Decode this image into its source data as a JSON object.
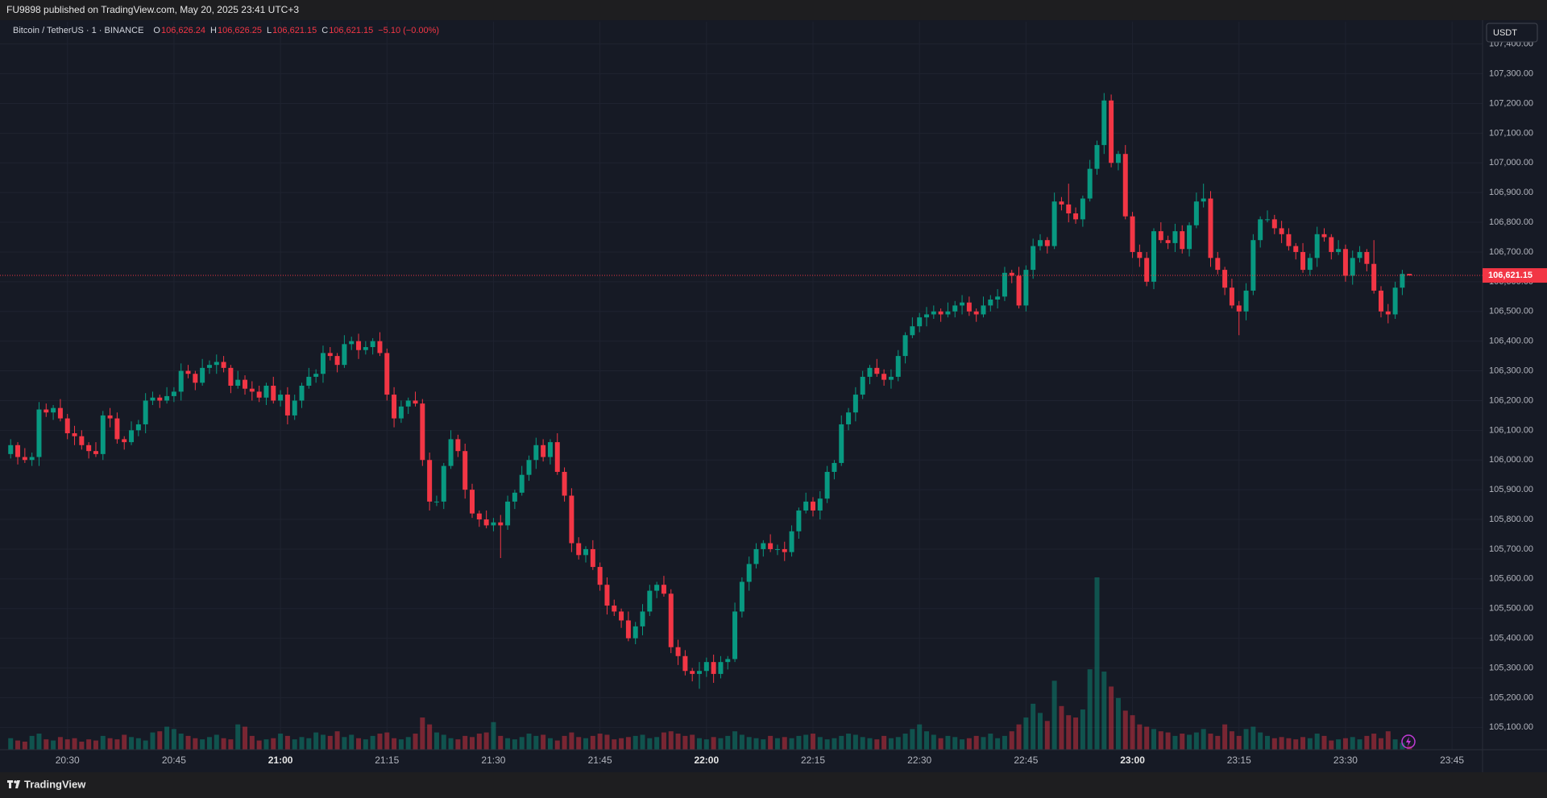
{
  "top_bar": {
    "text": "FU9898 published on TradingView.com, May 20, 2025 23:41 UTC+3"
  },
  "footer": {
    "brand": "TradingView"
  },
  "chart_data": {
    "type": "candlestick",
    "header": {
      "symbol": "Bitcoin / TetherUS · 1 · BINANCE",
      "ohlc": [
        {
          "label": "O",
          "value": "106,626.24"
        },
        {
          "label": "H",
          "value": "106,626.25"
        },
        {
          "label": "L",
          "value": "106,621.15"
        },
        {
          "label": "C",
          "value": "106,621.15"
        }
      ],
      "change": "−5.10 (−0.00%)"
    },
    "currency": "USDT",
    "last_price_label": "106,621.15",
    "up_color": "#089981",
    "down_color": "#f23645",
    "grid": true,
    "xlim": [
      1220.5,
      1429.3
    ],
    "xticks": [
      {
        "value": 1230,
        "label": "20:30"
      },
      {
        "value": 1245,
        "label": "20:45"
      },
      {
        "value": 1260,
        "label": "21:00"
      },
      {
        "value": 1275,
        "label": "21:15"
      },
      {
        "value": 1290,
        "label": "21:30"
      },
      {
        "value": 1305,
        "label": "21:45"
      },
      {
        "value": 1320,
        "label": "22:00"
      },
      {
        "value": 1335,
        "label": "22:15"
      },
      {
        "value": 1350,
        "label": "22:30"
      },
      {
        "value": 1365,
        "label": "22:45"
      },
      {
        "value": 1380,
        "label": "23:00"
      },
      {
        "value": 1395,
        "label": "23:15"
      },
      {
        "value": 1410,
        "label": "23:30"
      },
      {
        "value": 1425,
        "label": "23:45"
      }
    ],
    "ylim": [
      105025,
      107475
    ],
    "yticks": [
      {
        "value": 105100,
        "label": "105,100.00"
      },
      {
        "value": 105200,
        "label": "105,200.00"
      },
      {
        "value": 105300,
        "label": "105,300.00"
      },
      {
        "value": 105400,
        "label": "105,400.00"
      },
      {
        "value": 105500,
        "label": "105,500.00"
      },
      {
        "value": 105600,
        "label": "105,600.00"
      },
      {
        "value": 105700,
        "label": "105,700.00"
      },
      {
        "value": 105800,
        "label": "105,800.00"
      },
      {
        "value": 105900,
        "label": "105,900.00"
      },
      {
        "value": 106000,
        "label": "106,000.00"
      },
      {
        "value": 106100,
        "label": "106,100.00"
      },
      {
        "value": 106200,
        "label": "106,200.00"
      },
      {
        "value": 106300,
        "label": "106,300.00"
      },
      {
        "value": 106400,
        "label": "106,400.00"
      },
      {
        "value": 106500,
        "label": "106,500.00"
      },
      {
        "value": 106600,
        "label": "106,600.00"
      },
      {
        "value": 106700,
        "label": "106,700.00"
      },
      {
        "value": 106800,
        "label": "106,800.00"
      },
      {
        "value": 106900,
        "label": "106,900.00"
      },
      {
        "value": 107000,
        "label": "107,000.00"
      },
      {
        "value": 107100,
        "label": "107,100.00"
      },
      {
        "value": 107200,
        "label": "107,200.00"
      },
      {
        "value": 107300,
        "label": "107,300.00"
      },
      {
        "value": 107400,
        "label": "107,400.00"
      }
    ],
    "x": [
      1222,
      1223,
      1224,
      1225,
      1226,
      1227,
      1228,
      1229,
      1230,
      1231,
      1232,
      1233,
      1234,
      1235,
      1236,
      1237,
      1238,
      1239,
      1240,
      1241,
      1242,
      1243,
      1244,
      1245,
      1246,
      1247,
      1248,
      1249,
      1250,
      1251,
      1252,
      1253,
      1254,
      1255,
      1256,
      1257,
      1258,
      1259,
      1260,
      1261,
      1262,
      1263,
      1264,
      1265,
      1266,
      1267,
      1268,
      1269,
      1270,
      1271,
      1272,
      1273,
      1274,
      1275,
      1276,
      1277,
      1278,
      1279,
      1280,
      1281,
      1282,
      1283,
      1284,
      1285,
      1286,
      1287,
      1288,
      1289,
      1290,
      1291,
      1292,
      1293,
      1294,
      1295,
      1296,
      1297,
      1298,
      1299,
      1300,
      1301,
      1302,
      1303,
      1304,
      1305,
      1306,
      1307,
      1308,
      1309,
      1310,
      1311,
      1312,
      1313,
      1314,
      1315,
      1316,
      1317,
      1318,
      1319,
      1320,
      1321,
      1322,
      1323,
      1324,
      1325,
      1326,
      1327,
      1328,
      1329,
      1330,
      1331,
      1332,
      1333,
      1334,
      1335,
      1336,
      1337,
      1338,
      1339,
      1340,
      1341,
      1342,
      1343,
      1344,
      1345,
      1346,
      1347,
      1348,
      1349,
      1350,
      1351,
      1352,
      1353,
      1354,
      1355,
      1356,
      1357,
      1358,
      1359,
      1360,
      1361,
      1362,
      1363,
      1364,
      1365,
      1366,
      1367,
      1368,
      1369,
      1370,
      1371,
      1372,
      1373,
      1374,
      1375,
      1376,
      1377,
      1378,
      1379,
      1380,
      1381,
      1382,
      1383,
      1384,
      1385,
      1386,
      1387,
      1388,
      1389,
      1390,
      1391,
      1392,
      1393,
      1394,
      1395,
      1396,
      1397,
      1398,
      1399,
      1400,
      1401,
      1402,
      1403,
      1404,
      1405,
      1406,
      1407,
      1408,
      1409,
      1410,
      1411,
      1412,
      1413,
      1414,
      1415,
      1416,
      1417,
      1418,
      1419
    ],
    "open": [
      106020,
      106050,
      106010,
      106000,
      106010,
      106170,
      106160,
      106175,
      106140,
      106090,
      106080,
      106050,
      106030,
      106020,
      106150,
      106140,
      106070,
      106060,
      106100,
      106120,
      106200,
      106210,
      106200,
      106215,
      106230,
      106300,
      106290,
      106260,
      106310,
      106320,
      106330,
      106310,
      106250,
      106270,
      106240,
      106230,
      106210,
      106250,
      106200,
      106220,
      106150,
      106200,
      106250,
      106280,
      106290,
      106360,
      106350,
      106320,
      106390,
      106400,
      106370,
      106380,
      106400,
      106360,
      106220,
      106140,
      106180,
      106200,
      106190,
      106000,
      105860,
      105860,
      105980,
      106070,
      106030,
      105900,
      105820,
      105800,
      105780,
      105790,
      105780,
      105860,
      105890,
      105950,
      106000,
      106050,
      106010,
      106060,
      105960,
      105880,
      105720,
      105680,
      105700,
      105640,
      105580,
      105510,
      105490,
      105460,
      105400,
      105440,
      105490,
      105560,
      105580,
      105550,
      105370,
      105340,
      105290,
      105280,
      105290,
      105320,
      105280,
      105320,
      105330,
      105490,
      105590,
      105650,
      105700,
      105720,
      105700,
      105700,
      105690,
      105760,
      105830,
      105860,
      105830,
      105870,
      105960,
      105990,
      106120,
      106160,
      106220,
      106280,
      106310,
      106290,
      106270,
      106280,
      106350,
      106420,
      106450,
      106480,
      106490,
      106500,
      106490,
      106500,
      106520,
      106530,
      106500,
      106490,
      106520,
      106540,
      106550,
      106630,
      106620,
      106520,
      106640,
      106720,
      106740,
      106720,
      106870,
      106860,
      106830,
      106810,
      106880,
      106980,
      107060,
      107210,
      107000,
      107030,
      106820,
      106700,
      106680,
      106600,
      106770,
      106740,
      106730,
      106770,
      106710,
      106790,
      106870,
      106880,
      106680,
      106640,
      106580,
      106520,
      106500,
      106570,
      106740,
      106810,
      106810,
      106780,
      106760,
      106720,
      106700,
      106640,
      106680,
      106760,
      106750,
      106700,
      106710,
      106620,
      106680,
      106700,
      106660,
      106570,
      106500,
      106490,
      106580,
      106626.24
    ],
    "high": [
      106070,
      106060,
      106040,
      106025,
      106195,
      106190,
      106185,
      106205,
      106155,
      106115,
      106100,
      106060,
      106060,
      106165,
      106175,
      106160,
      106080,
      106130,
      106135,
      106225,
      106230,
      106220,
      106245,
      106245,
      106325,
      106320,
      106300,
      106340,
      106335,
      106355,
      106350,
      106320,
      106300,
      106285,
      106265,
      106250,
      106260,
      106280,
      106235,
      106245,
      106220,
      106260,
      106310,
      106305,
      106385,
      106380,
      106360,
      106420,
      106415,
      106425,
      106400,
      106410,
      106430,
      106375,
      106245,
      106200,
      106210,
      106230,
      106205,
      106025,
      105880,
      105990,
      106100,
      106085,
      106055,
      105920,
      105830,
      105830,
      105805,
      105815,
      105880,
      105900,
      105980,
      106015,
      106075,
      106070,
      106070,
      106090,
      105975,
      105905,
      105740,
      105710,
      105730,
      105655,
      105605,
      105530,
      105500,
      105490,
      105455,
      105515,
      105580,
      105590,
      105610,
      105565,
      105395,
      105360,
      105300,
      105320,
      105335,
      105345,
      105340,
      105340,
      105520,
      105605,
      105675,
      105720,
      105730,
      105750,
      105715,
      105725,
      105780,
      105840,
      105890,
      105875,
      105895,
      105980,
      106000,
      106150,
      106175,
      106245,
      106300,
      106320,
      106340,
      106305,
      106305,
      106370,
      106430,
      106480,
      106495,
      106515,
      106520,
      106510,
      106530,
      106535,
      106555,
      106550,
      106510,
      106550,
      106555,
      106575,
      106650,
      106640,
      106650,
      106655,
      106745,
      106760,
      106750,
      106900,
      106885,
      106930,
      106850,
      106890,
      107010,
      107075,
      107235,
      107230,
      107040,
      107060,
      106835,
      106725,
      106700,
      106780,
      106800,
      106755,
      106795,
      106790,
      106800,
      106900,
      106930,
      106905,
      106700,
      106650,
      106610,
      106535,
      106595,
      106760,
      106820,
      106840,
      106825,
      106805,
      106780,
      106730,
      106730,
      106695,
      106785,
      106780,
      106760,
      106740,
      106725,
      106705,
      106720,
      106710,
      106740,
      106585,
      106525,
      106600,
      106640,
      106626.25
    ],
    "low": [
      106005,
      105985,
      105990,
      105980,
      105980,
      106145,
      106135,
      106130,
      106070,
      106050,
      106035,
      106005,
      106010,
      106000,
      106110,
      106055,
      106035,
      106050,
      106080,
      106090,
      106185,
      106175,
      106190,
      106195,
      106200,
      106275,
      106235,
      106250,
      106290,
      106290,
      106295,
      106225,
      106240,
      106220,
      106200,
      106195,
      106185,
      106190,
      106180,
      106120,
      106135,
      106175,
      106240,
      106260,
      106260,
      106335,
      106295,
      106310,
      106370,
      106340,
      106355,
      106355,
      106350,
      106200,
      106110,
      106125,
      106155,
      106180,
      105980,
      105830,
      105845,
      105835,
      105970,
      106010,
      105870,
      105805,
      105775,
      105770,
      105760,
      105670,
      105765,
      105835,
      105880,
      105930,
      105970,
      105995,
      105985,
      105950,
      105860,
      105690,
      105665,
      105655,
      105630,
      105560,
      105480,
      105475,
      105435,
      105390,
      105380,
      105410,
      105475,
      105535,
      105540,
      105350,
      105310,
      105275,
      105255,
      105230,
      105270,
      105250,
      105265,
      105295,
      105320,
      105470,
      105560,
      105635,
      105675,
      105690,
      105680,
      105660,
      105675,
      105735,
      105820,
      105810,
      105800,
      105855,
      105935,
      105980,
      106100,
      106130,
      106205,
      106255,
      106280,
      106250,
      106240,
      106265,
      106325,
      106410,
      106430,
      106450,
      106475,
      106465,
      106480,
      106480,
      106490,
      106485,
      106465,
      106480,
      106500,
      106510,
      106535,
      106595,
      106510,
      106500,
      106610,
      106705,
      106695,
      106710,
      106840,
      106800,
      106795,
      106785,
      106870,
      106960,
      107030,
      106985,
      106975,
      106810,
      106680,
      106650,
      106585,
      106575,
      106730,
      106710,
      106700,
      106695,
      106685,
      106780,
      106850,
      106650,
      106625,
      106555,
      106510,
      106420,
      106470,
      106555,
      106715,
      106800,
      106760,
      106730,
      106705,
      106675,
      106630,
      106620,
      106650,
      106735,
      106675,
      106690,
      106600,
      106590,
      106665,
      106635,
      106560,
      106480,
      106460,
      106475,
      106555,
      106621.15
    ],
    "close": [
      106050,
      106010,
      106000,
      106010,
      106170,
      106160,
      106175,
      106140,
      106090,
      106080,
      106050,
      106030,
      106020,
      106150,
      106140,
      106070,
      106060,
      106100,
      106120,
      106200,
      106210,
      106200,
      106215,
      106230,
      106300,
      106290,
      106260,
      106310,
      106320,
      106330,
      106310,
      106250,
      106270,
      106240,
      106230,
      106210,
      106250,
      106200,
      106220,
      106150,
      106200,
      106250,
      106280,
      106290,
      106360,
      106350,
      106320,
      106390,
      106400,
      106370,
      106380,
      106400,
      106360,
      106220,
      106140,
      106180,
      106200,
      106190,
      106000,
      105860,
      105860,
      105980,
      106070,
      106030,
      105900,
      105820,
      105800,
      105780,
      105790,
      105780,
      105860,
      105890,
      105950,
      106000,
      106050,
      106010,
      106060,
      105960,
      105880,
      105720,
      105680,
      105700,
      105640,
      105580,
      105510,
      105490,
      105460,
      105400,
      105440,
      105490,
      105560,
      105580,
      105550,
      105370,
      105340,
      105290,
      105280,
      105290,
      105320,
      105280,
      105320,
      105330,
      105490,
      105590,
      105650,
      105700,
      105720,
      105700,
      105700,
      105690,
      105760,
      105830,
      105860,
      105830,
      105870,
      105960,
      105990,
      106120,
      106160,
      106220,
      106280,
      106310,
      106290,
      106270,
      106280,
      106350,
      106420,
      106450,
      106480,
      106490,
      106500,
      106490,
      106500,
      106520,
      106530,
      106500,
      106490,
      106520,
      106540,
      106550,
      106630,
      106620,
      106520,
      106640,
      106720,
      106740,
      106720,
      106870,
      106860,
      106830,
      106810,
      106880,
      106980,
      107060,
      107210,
      107000,
      107030,
      106820,
      106700,
      106680,
      106600,
      106770,
      106740,
      106730,
      106770,
      106710,
      106790,
      106870,
      106880,
      106680,
      106640,
      106580,
      106520,
      106500,
      106570,
      106740,
      106810,
      106810,
      106780,
      106760,
      106720,
      106700,
      106640,
      106680,
      106760,
      106750,
      106700,
      106710,
      106620,
      106680,
      106700,
      106660,
      106570,
      106500,
      106490,
      106580,
      106626.24,
      106621.15
    ],
    "volume": [
      10,
      8,
      7,
      12,
      14,
      9,
      8,
      11,
      9,
      10,
      7,
      9,
      8,
      12,
      10,
      9,
      13,
      11,
      10,
      8,
      15,
      16,
      20,
      18,
      14,
      12,
      10,
      9,
      11,
      13,
      10,
      9,
      22,
      20,
      12,
      8,
      9,
      10,
      14,
      12,
      9,
      11,
      10,
      15,
      13,
      12,
      16,
      11,
      13,
      10,
      9,
      12,
      14,
      15,
      10,
      9,
      11,
      14,
      28,
      22,
      15,
      13,
      10,
      9,
      12,
      11,
      14,
      15,
      24,
      12,
      10,
      9,
      11,
      14,
      12,
      13,
      10,
      8,
      12,
      15,
      11,
      10,
      12,
      14,
      13,
      9,
      10,
      11,
      12,
      13,
      10,
      11,
      15,
      16,
      14,
      12,
      13,
      10,
      9,
      11,
      10,
      12,
      16,
      13,
      11,
      10,
      9,
      12,
      10,
      11,
      10,
      12,
      13,
      14,
      11,
      9,
      10,
      12,
      14,
      13,
      11,
      10,
      9,
      12,
      10,
      11,
      14,
      18,
      22,
      16,
      13,
      10,
      12,
      11,
      9,
      10,
      12,
      11,
      14,
      10,
      12,
      16,
      22,
      28,
      40,
      32,
      25,
      60,
      38,
      30,
      28,
      35,
      70,
      150,
      68,
      55,
      45,
      34,
      30,
      22,
      20,
      18,
      16,
      15,
      12,
      14,
      13,
      15,
      18,
      14,
      12,
      22,
      16,
      12,
      18,
      20,
      15,
      12,
      10,
      11,
      10,
      9,
      11,
      10,
      14,
      12,
      8,
      9,
      10,
      11,
      9,
      12,
      14,
      10,
      16,
      9,
      6,
      3
    ]
  }
}
